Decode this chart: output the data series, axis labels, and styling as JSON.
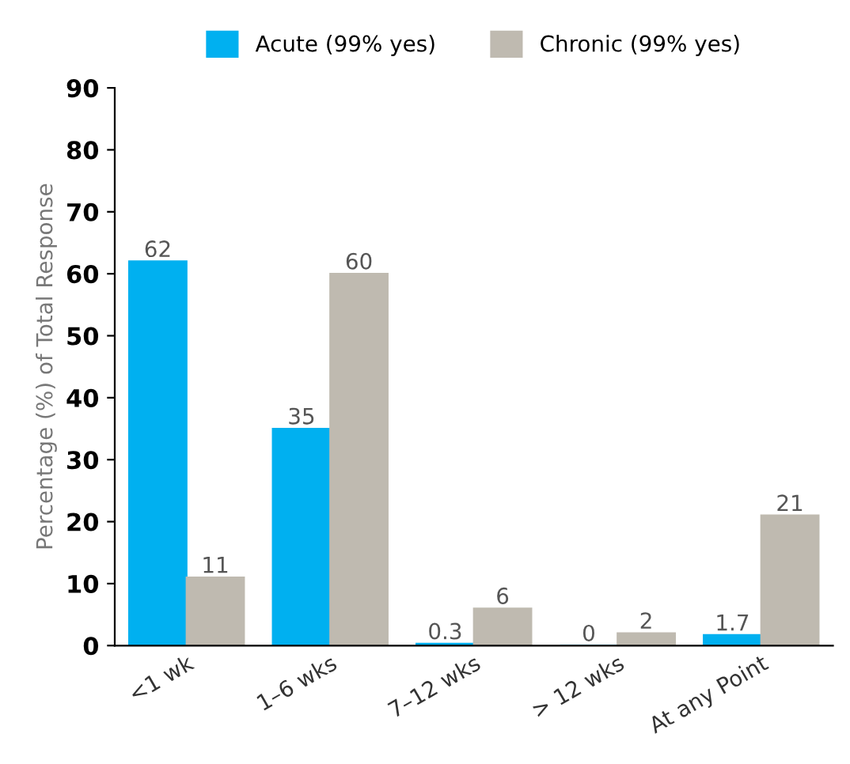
{
  "chart_data": {
    "type": "bar",
    "categories": [
      "<1 wk",
      "1–6 wks",
      "7–12 wks",
      "> 12 wks",
      "At any Point"
    ],
    "series": [
      {
        "name": "Acute (99% yes)",
        "color": "#00b0f0",
        "values": [
          62,
          35,
          0.3,
          0,
          1.7
        ]
      },
      {
        "name": "Chronic (99% yes)",
        "color": "#bfbab0",
        "values": [
          11,
          60,
          6,
          2,
          21
        ]
      }
    ],
    "ylabel": "Percentage (%) of Total Response",
    "ylim": [
      0,
      90
    ],
    "yticks": [
      0,
      10,
      20,
      30,
      40,
      50,
      60,
      70,
      80,
      90
    ],
    "data_labels": true,
    "legend": "top",
    "grid": false
  }
}
